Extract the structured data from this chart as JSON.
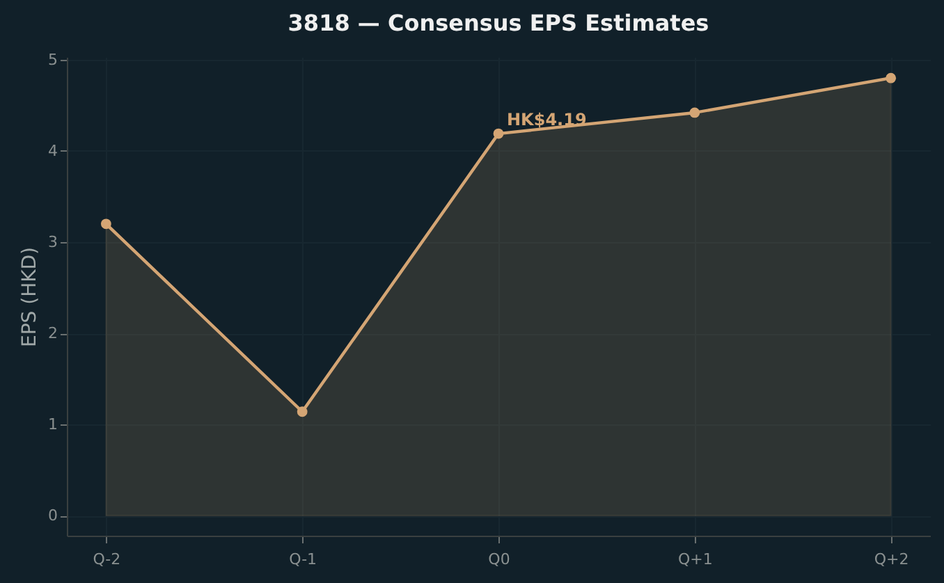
{
  "chart_data": {
    "type": "area",
    "title": "3818 — Consensus EPS Estimates",
    "ylabel": "EPS (HKD)",
    "categories": [
      "Q-2",
      "Q-1",
      "Q0",
      "Q+1",
      "Q+2"
    ],
    "series": [
      {
        "color": "#d4a574",
        "values": [
          3.2,
          1.14,
          4.19,
          4.42,
          4.8
        ]
      }
    ],
    "ylim": [
      -0.22,
      5.03
    ],
    "yticks": [
      0,
      1,
      2,
      3,
      4,
      5
    ],
    "grid": true,
    "marker": "circle",
    "annotations": [
      {
        "text": "HK$4.19",
        "x": "Q0",
        "y": 4.19
      }
    ]
  }
}
